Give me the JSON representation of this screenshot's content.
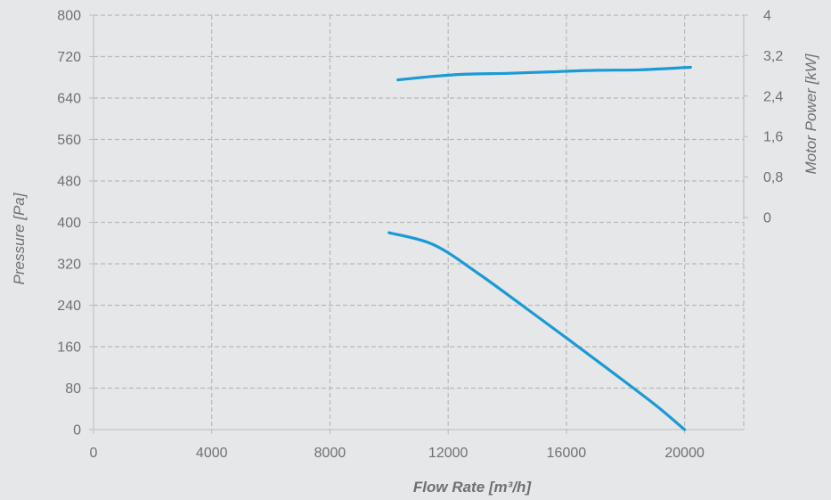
{
  "chart_data": {
    "type": "line",
    "title": "",
    "xlabel": "Flow Rate [m³/h]",
    "ylabel": "Pressure [Pa]",
    "y2label": "Motor Power [kW]",
    "xlim": [
      0,
      22000
    ],
    "ylim": [
      0,
      800
    ],
    "y2lim": [
      0,
      4
    ],
    "x_ticks": [
      0,
      4000,
      8000,
      12000,
      16000,
      20000
    ],
    "x_tick_labels": [
      "0",
      "4000",
      "8000",
      "12000",
      "16000",
      "20000"
    ],
    "y_ticks": [
      0,
      80,
      160,
      240,
      320,
      400,
      480,
      560,
      640,
      720,
      800
    ],
    "y_tick_labels": [
      "0",
      "80",
      "160",
      "240",
      "320",
      "400",
      "480",
      "560",
      "640",
      "720",
      "800"
    ],
    "y2_ticks": [
      0,
      0.8,
      1.6,
      2.4,
      3.2,
      4
    ],
    "y2_tick_labels": [
      "0",
      "0,8",
      "1,6",
      "2,4",
      "3,2",
      "4"
    ],
    "grid": true,
    "series_color": "#1a9ad6",
    "series": [
      {
        "axis": "left",
        "x": [
          10000,
          11500,
          13000,
          14500,
          16000,
          17500,
          19000,
          20000
        ],
        "y": [
          380,
          357,
          302,
          240,
          177,
          113,
          48,
          0
        ]
      },
      {
        "axis": "right",
        "x": [
          10300,
          11500,
          12500,
          14000,
          15500,
          17000,
          18500,
          20200
        ],
        "y": [
          2.72,
          2.79,
          2.83,
          2.85,
          2.88,
          2.91,
          2.92,
          2.97
        ]
      }
    ]
  }
}
